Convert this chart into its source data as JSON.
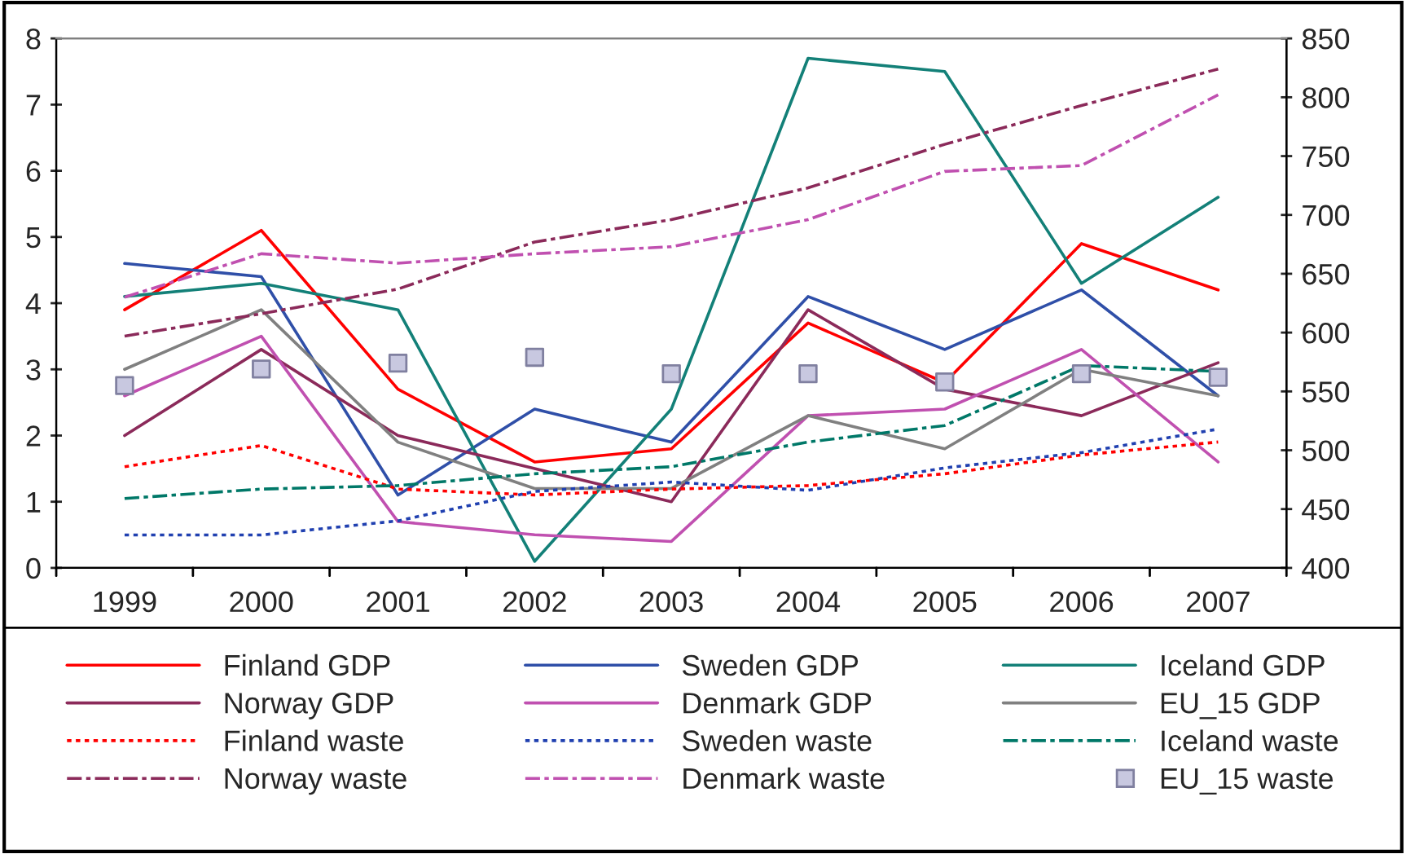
{
  "chart_data": {
    "type": "line",
    "categories": [
      "1999",
      "2000",
      "2001",
      "2002",
      "2003",
      "2004",
      "2005",
      "2006",
      "2007"
    ],
    "ylim": [
      0,
      8
    ],
    "yticks": [
      0,
      1,
      2,
      3,
      4,
      5,
      6,
      7,
      8
    ],
    "y2lim": [
      400,
      850
    ],
    "y2ticks": [
      400,
      450,
      500,
      550,
      600,
      650,
      700,
      750,
      800,
      850
    ],
    "legend": "bottom",
    "grid": false,
    "series": [
      {
        "name": "Finland GDP",
        "color": "#ff0000",
        "line_style": "solid",
        "values": [
          3.9,
          5.1,
          2.7,
          1.6,
          1.8,
          3.7,
          2.8,
          4.9,
          4.2
        ]
      },
      {
        "name": "Sweden GDP",
        "color": "#2f4fa8",
        "line_style": "solid",
        "values": [
          4.6,
          4.4,
          1.1,
          2.4,
          1.9,
          4.1,
          3.3,
          4.2,
          2.6
        ]
      },
      {
        "name": "Iceland GDP",
        "color": "#138078",
        "line_style": "solid",
        "values": [
          4.1,
          4.3,
          3.9,
          0.1,
          2.4,
          7.7,
          7.5,
          4.3,
          5.6
        ]
      },
      {
        "name": "Norway GDP",
        "color": "#8b2a5a",
        "line_style": "solid",
        "values": [
          2.0,
          3.3,
          2.0,
          1.5,
          1.0,
          3.9,
          2.7,
          2.3,
          3.1
        ]
      },
      {
        "name": "Denmark GDP",
        "color": "#c050b0",
        "line_style": "solid",
        "values": [
          2.6,
          3.5,
          0.7,
          0.5,
          0.4,
          2.3,
          2.4,
          3.3,
          1.6
        ]
      },
      {
        "name": "EU_15 GDP",
        "color": "#808080",
        "line_style": "solid",
        "values": [
          3.0,
          3.9,
          1.9,
          1.2,
          1.2,
          2.3,
          1.8,
          3.0,
          2.6
        ]
      },
      {
        "name": "Finland waste",
        "color": "#ff0000",
        "line_style": "dotted",
        "axis": "y2",
        "values": [
          486,
          504,
          467,
          462,
          467,
          470,
          480,
          496,
          507
        ]
      },
      {
        "name": "Sweden waste",
        "color": "#2040b0",
        "line_style": "dotted",
        "axis": "y2",
        "values": [
          428,
          428,
          440,
          465,
          473,
          466,
          485,
          498,
          518
        ]
      },
      {
        "name": "Iceland waste",
        "color": "#007868",
        "line_style": "dashdot",
        "axis": "y2",
        "values": [
          459,
          467,
          470,
          480,
          486,
          507,
          521,
          572,
          567
        ]
      },
      {
        "name": "Norway waste",
        "color": "#8b2a5a",
        "line_style": "dashdot",
        "axis": "y2",
        "values": [
          597,
          616,
          637,
          677,
          696,
          723,
          760,
          793,
          824
        ]
      },
      {
        "name": "Denmark waste",
        "color": "#c050b0",
        "line_style": "dashdot",
        "axis": "y2",
        "values": [
          630,
          667,
          659,
          667,
          673,
          696,
          737,
          742,
          802
        ]
      },
      {
        "name": "EU_15 waste",
        "type": "scatter",
        "marker": "square",
        "color": "#c8c8e0",
        "axis": "y2",
        "values": [
          555,
          569,
          574,
          579,
          565,
          565,
          558,
          565,
          562
        ]
      }
    ]
  }
}
